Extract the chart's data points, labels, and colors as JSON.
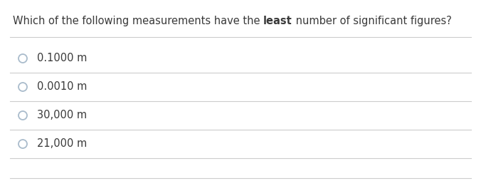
{
  "title_parts": [
    {
      "text": "Which of the following measurements have the ",
      "bold": false
    },
    {
      "text": "least",
      "bold": true
    },
    {
      "text": " number of significant figures?",
      "bold": false
    }
  ],
  "options": [
    "0.1000 m",
    "0.0010 m",
    "30,000 m",
    "21,000 m"
  ],
  "background_color": "#ffffff",
  "text_color": "#3a3a3a",
  "line_color": "#cccccc",
  "circle_edge_color": "#aabccc",
  "font_size": 10.5,
  "title_font_size": 10.5,
  "fig_width": 6.76,
  "fig_height": 2.54,
  "dpi": 100
}
